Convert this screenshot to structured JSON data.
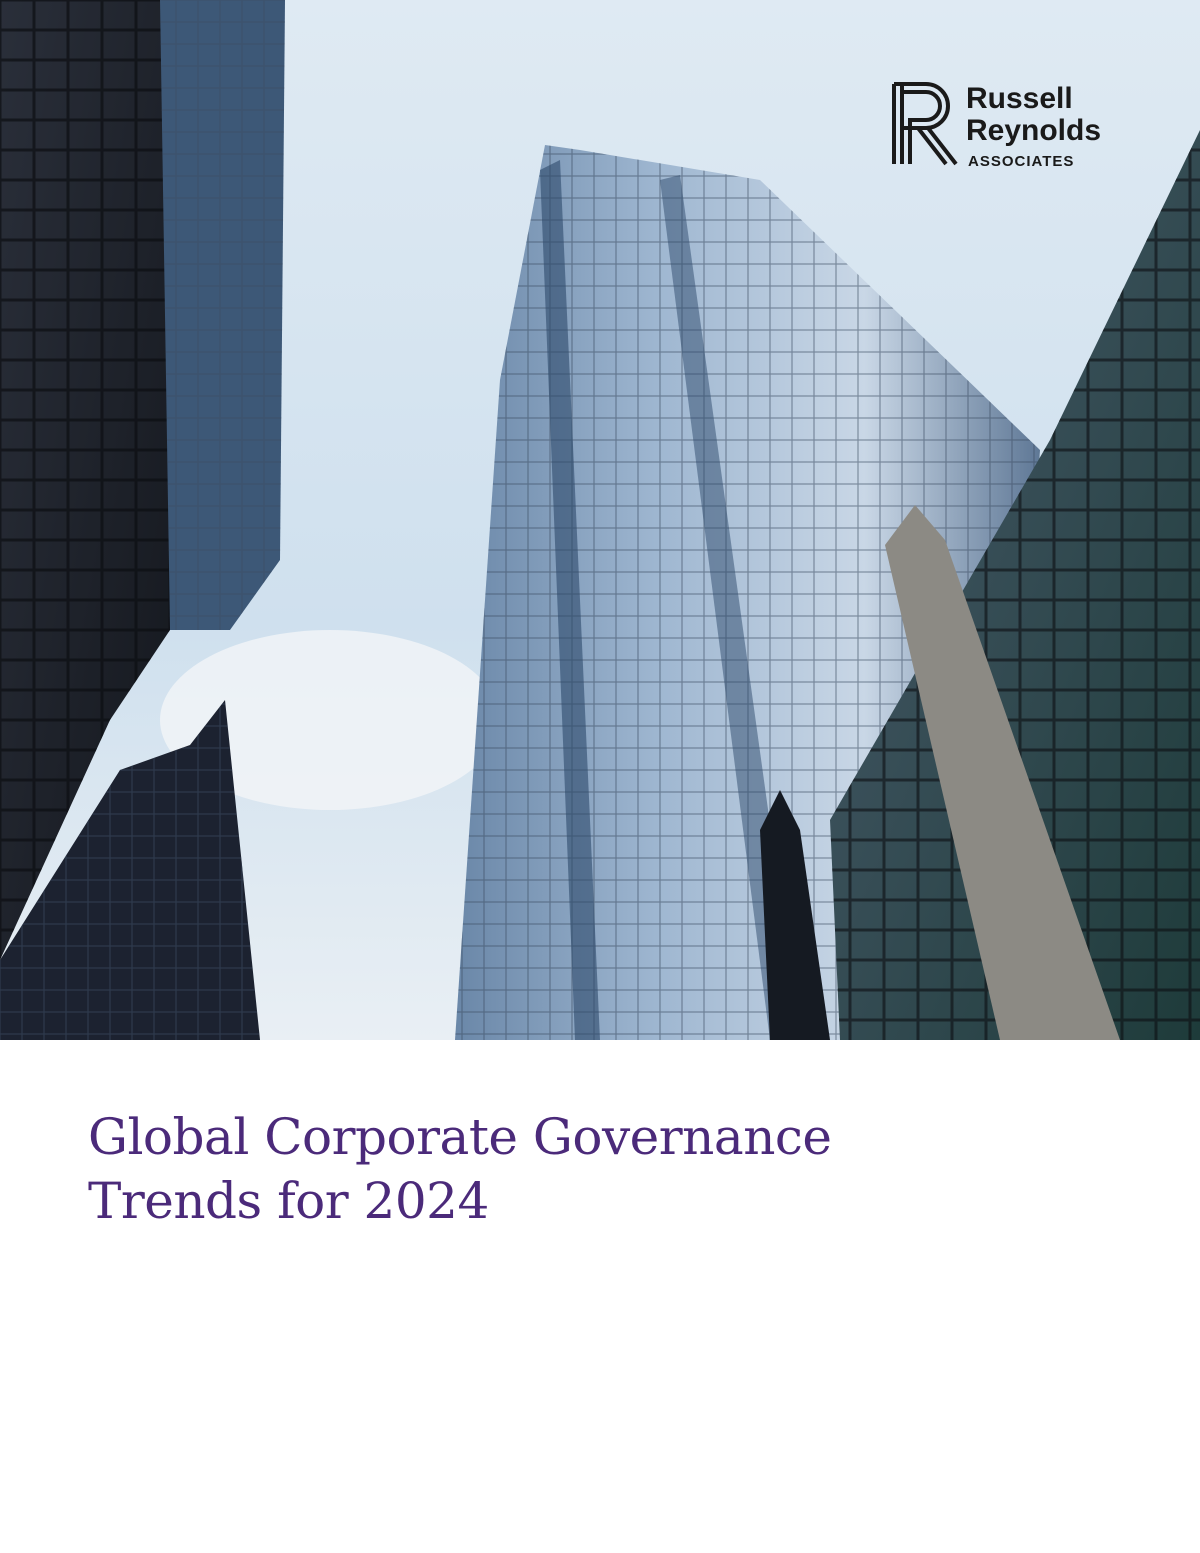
{
  "logo": {
    "name_line1": "Russell",
    "name_line2": "Reynolds",
    "tagline": "ASSOCIATES"
  },
  "title": {
    "line1": "Global Corporate Governance",
    "line2": "Trends for 2024"
  }
}
